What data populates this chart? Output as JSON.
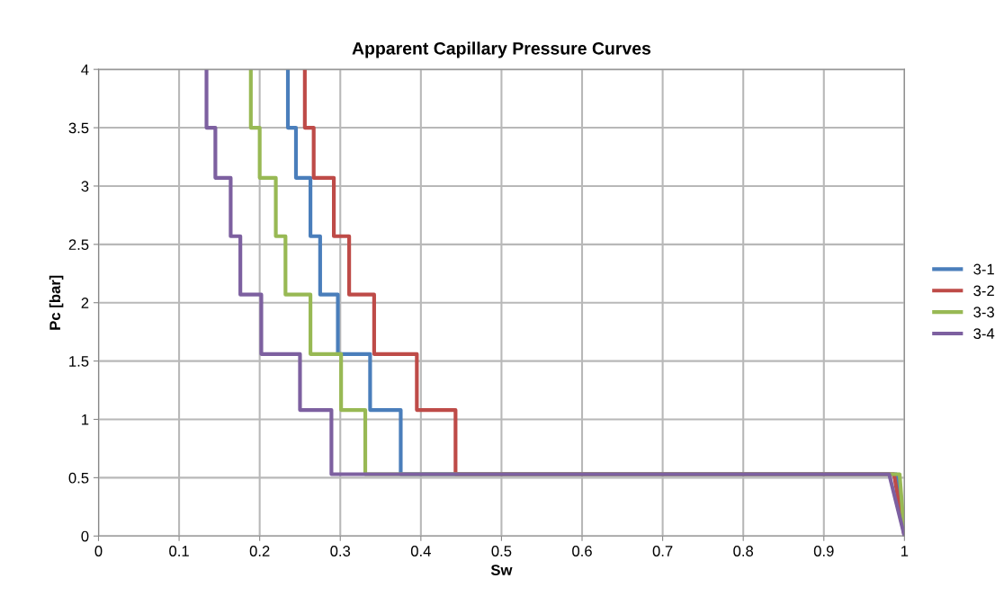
{
  "chart_data": {
    "type": "line",
    "title": "Apparent Capillary Pressure Curves",
    "xlabel": "Sw",
    "ylabel": "Pc [bar]",
    "xlim": [
      0,
      1
    ],
    "ylim": [
      0,
      4
    ],
    "xticks": [
      0,
      0.1,
      0.2,
      0.3,
      0.4,
      0.5,
      0.6,
      0.7,
      0.8,
      0.9,
      1
    ],
    "yticks": [
      0,
      0.5,
      1,
      1.5,
      2,
      2.5,
      3,
      3.5,
      4
    ],
    "grid": true,
    "legend": "right",
    "marker": "none",
    "line_style": "solid",
    "series": [
      {
        "name": "3-1",
        "color": "#4a7ebb",
        "x": [
          0.235,
          0.235,
          0.245,
          0.245,
          0.263,
          0.263,
          0.275,
          0.275,
          0.297,
          0.297,
          0.337,
          0.337,
          0.375,
          0.375,
          0.99,
          1
        ],
        "values": [
          4,
          3.5,
          3.5,
          3.07,
          3.07,
          2.57,
          2.57,
          2.07,
          2.07,
          1.56,
          1.56,
          1.08,
          1.08,
          0.53,
          0.53,
          0
        ]
      },
      {
        "name": "3-2",
        "color": "#be4b48",
        "x": [
          0.256,
          0.256,
          0.267,
          0.267,
          0.292,
          0.292,
          0.311,
          0.311,
          0.342,
          0.342,
          0.395,
          0.395,
          0.443,
          0.443,
          0.987,
          1
        ],
        "values": [
          4,
          3.5,
          3.5,
          3.07,
          3.07,
          2.57,
          2.57,
          2.07,
          2.07,
          1.56,
          1.56,
          1.08,
          1.08,
          0.53,
          0.53,
          0
        ]
      },
      {
        "name": "3-3",
        "color": "#98b954",
        "x": [
          0.189,
          0.189,
          0.2,
          0.2,
          0.22,
          0.22,
          0.232,
          0.232,
          0.263,
          0.263,
          0.301,
          0.301,
          0.331,
          0.331,
          0.994,
          1
        ],
        "values": [
          4,
          3.5,
          3.5,
          3.07,
          3.07,
          2.57,
          2.57,
          2.07,
          2.07,
          1.56,
          1.56,
          1.08,
          1.08,
          0.53,
          0.53,
          0
        ]
      },
      {
        "name": "3-4",
        "color": "#7d60a0",
        "x": [
          0.134,
          0.134,
          0.145,
          0.145,
          0.164,
          0.164,
          0.176,
          0.176,
          0.202,
          0.202,
          0.25,
          0.25,
          0.289,
          0.289,
          0.981,
          1
        ],
        "values": [
          4,
          3.5,
          3.5,
          3.07,
          3.07,
          2.57,
          2.57,
          2.07,
          2.07,
          1.56,
          1.56,
          1.08,
          1.08,
          0.53,
          0.53,
          0
        ]
      }
    ]
  }
}
